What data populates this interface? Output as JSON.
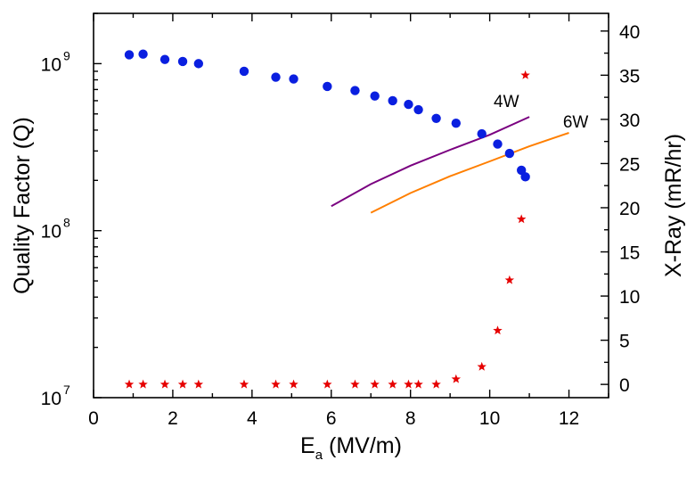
{
  "chart_data": {
    "type": "scatter",
    "x_axis": {
      "label": "E",
      "label_subscript": "a",
      "label_suffix": " (MV/m)",
      "range": [
        0,
        13
      ],
      "ticks": [
        0,
        2,
        4,
        6,
        8,
        10,
        12
      ]
    },
    "y_left": {
      "label": "Quality Factor (Q)",
      "scale": "log",
      "range": [
        10000000.0,
        2000000000.0
      ],
      "ticks": [
        {
          "value": 10000000.0,
          "base": "10",
          "exp": "7"
        },
        {
          "value": 100000000.0,
          "base": "10",
          "exp": "8"
        },
        {
          "value": 1000000000.0,
          "base": "10",
          "exp": "9"
        }
      ]
    },
    "y_right": {
      "label": "X-Ray (mR/hr)",
      "scale": "linear",
      "range": [
        -1.5,
        42
      ],
      "ticks": [
        0,
        5,
        10,
        15,
        20,
        25,
        30,
        35,
        40
      ]
    },
    "series": [
      {
        "marker": "circle",
        "color": "#0a1fe0",
        "axis": "left",
        "points": [
          [
            0.9,
            1130000000.0
          ],
          [
            1.25,
            1140000000.0
          ],
          [
            1.8,
            1060000000.0
          ],
          [
            2.25,
            1030000000.0
          ],
          [
            2.65,
            1000000000.0
          ],
          [
            3.8,
            900000000.0
          ],
          [
            4.6,
            830000000.0
          ],
          [
            5.05,
            810000000.0
          ],
          [
            5.9,
            730000000.0
          ],
          [
            6.6,
            690000000.0
          ],
          [
            7.1,
            640000000.0
          ],
          [
            7.55,
            600000000.0
          ],
          [
            7.95,
            570000000.0
          ],
          [
            8.2,
            530000000.0
          ],
          [
            8.65,
            470000000.0
          ],
          [
            9.15,
            440000000.0
          ],
          [
            9.8,
            380000000.0
          ],
          [
            10.2,
            330000000.0
          ],
          [
            10.5,
            290000000.0
          ],
          [
            10.8,
            230000000.0
          ],
          [
            10.9,
            210000000.0
          ]
        ]
      },
      {
        "marker": "star",
        "color": "#e60000",
        "axis": "right",
        "points": [
          [
            0.9,
            0
          ],
          [
            1.25,
            0
          ],
          [
            1.8,
            0
          ],
          [
            2.25,
            0
          ],
          [
            2.65,
            0
          ],
          [
            3.8,
            0
          ],
          [
            4.6,
            0
          ],
          [
            5.05,
            0
          ],
          [
            5.9,
            0
          ],
          [
            6.6,
            0
          ],
          [
            7.1,
            0
          ],
          [
            7.55,
            0
          ],
          [
            7.95,
            0
          ],
          [
            8.2,
            0
          ],
          [
            8.65,
            0
          ],
          [
            9.15,
            0.6
          ],
          [
            9.8,
            2.0
          ],
          [
            10.2,
            6.1
          ],
          [
            10.5,
            11.8
          ],
          [
            10.8,
            18.7
          ],
          [
            10.9,
            35
          ]
        ]
      }
    ],
    "curves": [
      {
        "label": "4W",
        "color": "#7a0080",
        "axis": "left",
        "points": [
          [
            6.0,
            140000000.0
          ],
          [
            7.0,
            190000000.0
          ],
          [
            8.0,
            245000000.0
          ],
          [
            9.0,
            305000000.0
          ],
          [
            10.0,
            375000000.0
          ],
          [
            11.0,
            480000000.0
          ]
        ],
        "label_at": [
          10.1,
          550000000.0
        ]
      },
      {
        "label": "6W",
        "color": "#ff7f00",
        "axis": "left",
        "points": [
          [
            7.0,
            128000000.0
          ],
          [
            8.0,
            168000000.0
          ],
          [
            9.0,
            212000000.0
          ],
          [
            10.0,
            260000000.0
          ],
          [
            11.0,
            320000000.0
          ],
          [
            12.0,
            385000000.0
          ]
        ],
        "label_at": [
          11.85,
          415000000.0
        ]
      }
    ]
  }
}
